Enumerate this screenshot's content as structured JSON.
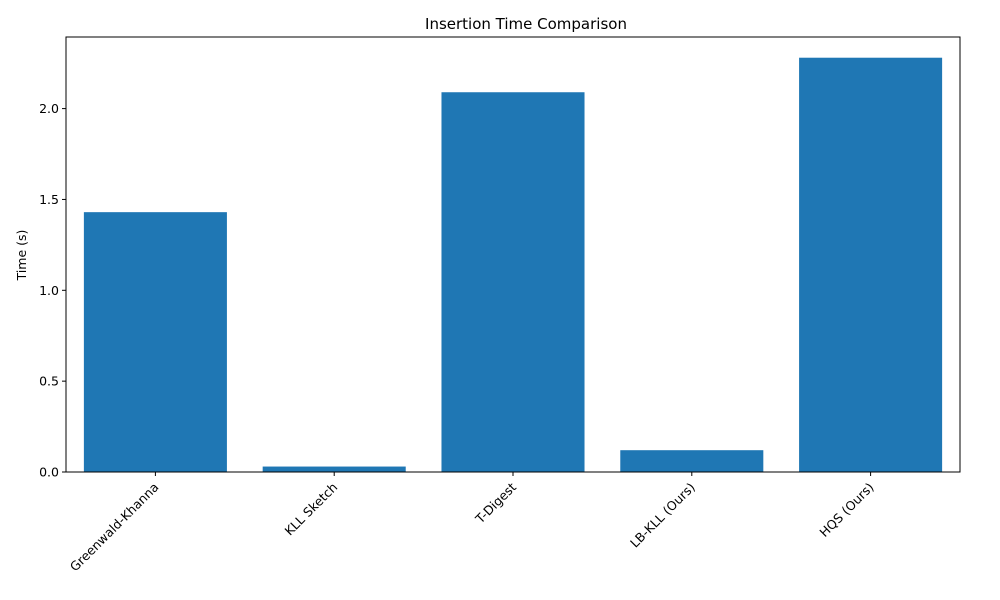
{
  "chart_data": {
    "type": "bar",
    "title": "Insertion Time Comparison",
    "xlabel": "",
    "ylabel": "Time (s)",
    "categories": [
      "Greenwald-Khanna",
      "KLL Sketch",
      "T-Digest",
      "LB-KLL (Ours)",
      "HQS (Ours)"
    ],
    "values": [
      1.43,
      0.03,
      2.09,
      0.12,
      2.28
    ],
    "ylim": [
      0,
      2.394
    ],
    "yticks": [
      0.0,
      0.5,
      1.0,
      1.5,
      2.0
    ],
    "ytick_labels": [
      "0.0",
      "0.5",
      "1.0",
      "1.5",
      "2.0"
    ],
    "bar_color": "#1f77b4",
    "grid": false
  }
}
